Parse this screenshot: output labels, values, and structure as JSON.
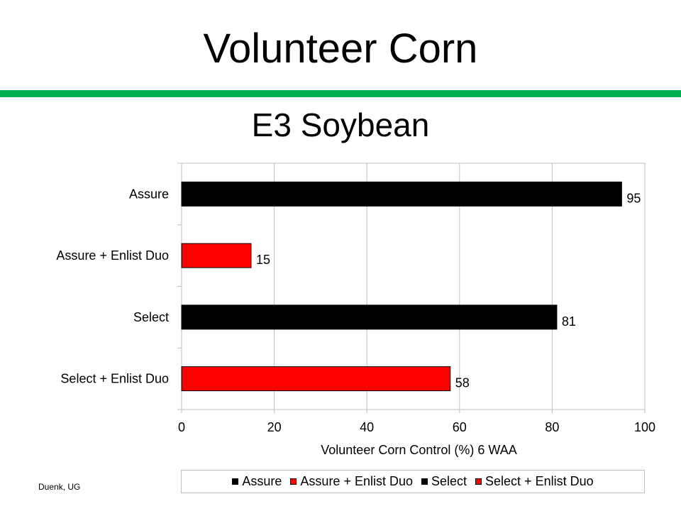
{
  "slide": {
    "title": "Volunteer Corn",
    "credit": "Duenk, UG"
  },
  "colors": {
    "rule": "#00b050",
    "black_series": "#000000",
    "red_series": "#ff0000",
    "grid": "#bfbfbf"
  },
  "chart_data": {
    "type": "bar",
    "orientation": "horizontal",
    "title": "E3 Soybean",
    "xlabel": "Volunteer Corn Control (%) 6 WAA",
    "ylabel": "",
    "xlim": [
      0,
      100
    ],
    "xticks": [
      0,
      20,
      40,
      60,
      80,
      100
    ],
    "grid": true,
    "categories": [
      "Assure",
      "Assure + Enlist Duo",
      "Select",
      "Select + Enlist Duo"
    ],
    "series": [
      {
        "name": "Assure",
        "category": "Assure",
        "value": 95,
        "color": "#000000"
      },
      {
        "name": "Assure + Enlist Duo",
        "category": "Assure + Enlist Duo",
        "value": 15,
        "color": "#ff0000"
      },
      {
        "name": "Select",
        "category": "Select",
        "value": 81,
        "color": "#000000"
      },
      {
        "name": "Select + Enlist Duo",
        "category": "Select + Enlist Duo",
        "value": 58,
        "color": "#ff0000"
      }
    ],
    "data_labels": true,
    "legend": {
      "position": "bottom",
      "items": [
        {
          "label": "Assure",
          "color": "#000000"
        },
        {
          "label": "Assure + Enlist Duo",
          "color": "#ff0000"
        },
        {
          "label": "Select",
          "color": "#000000"
        },
        {
          "label": "Select + Enlist Duo",
          "color": "#ff0000"
        }
      ]
    }
  }
}
